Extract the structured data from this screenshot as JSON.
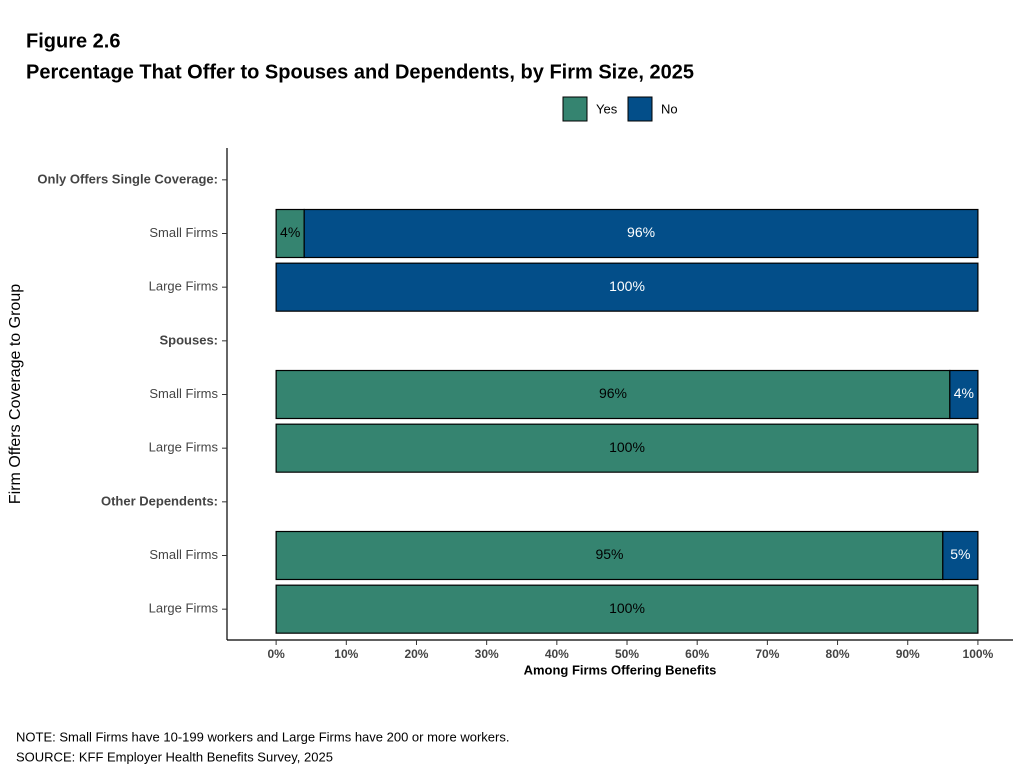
{
  "chart_data": {
    "type": "stacked_barh",
    "figure_label": "Figure 2.6",
    "title": "Percentage That Offer to Spouses and Dependents, by Firm Size, 2025",
    "x_label": "Among Firms Offering Benefits",
    "y_label": "Firm Offers Coverage to Group",
    "categories": [
      "Only Offers Single Coverage:",
      "Small Firms",
      "Large Firms",
      "Spouses:",
      "Small Firms",
      "Large Firms",
      "Other Dependents:",
      "Small Firms",
      "Large Firms"
    ],
    "series": [
      {
        "name": "Yes",
        "color": "#358470",
        "label_color": "#000000",
        "values": [
          null,
          4,
          0,
          null,
          96,
          100,
          null,
          95,
          100
        ],
        "value_labels": [
          null,
          "4%",
          null,
          null,
          "96%",
          "100%",
          null,
          "95%",
          "100%"
        ]
      },
      {
        "name": "No",
        "color": "#034e89",
        "label_color": "#ffffff",
        "values": [
          null,
          96,
          100,
          null,
          4,
          0,
          null,
          5,
          0
        ],
        "value_labels": [
          null,
          "96%",
          "100%",
          null,
          "4%",
          null,
          null,
          "5%",
          null
        ]
      }
    ],
    "xlim": [
      -7,
      105
    ],
    "xticks": [
      {
        "value": 0,
        "label": "0%"
      },
      {
        "value": 10,
        "label": "10%"
      },
      {
        "value": 20,
        "label": "20%"
      },
      {
        "value": 30,
        "label": "30%"
      },
      {
        "value": 40,
        "label": "40%"
      },
      {
        "value": 50,
        "label": "50%"
      },
      {
        "value": 60,
        "label": "60%"
      },
      {
        "value": 70,
        "label": "70%"
      },
      {
        "value": 80,
        "label": "80%"
      },
      {
        "value": 90,
        "label": "90%"
      },
      {
        "value": 100,
        "label": "100%"
      }
    ],
    "legend_position": "top",
    "notes": [
      "NOTE: Small Firms have 10-199 workers and Large Firms have 200 or more workers.",
      "SOURCE: KFF Employer Health Benefits Survey, 2025"
    ]
  }
}
